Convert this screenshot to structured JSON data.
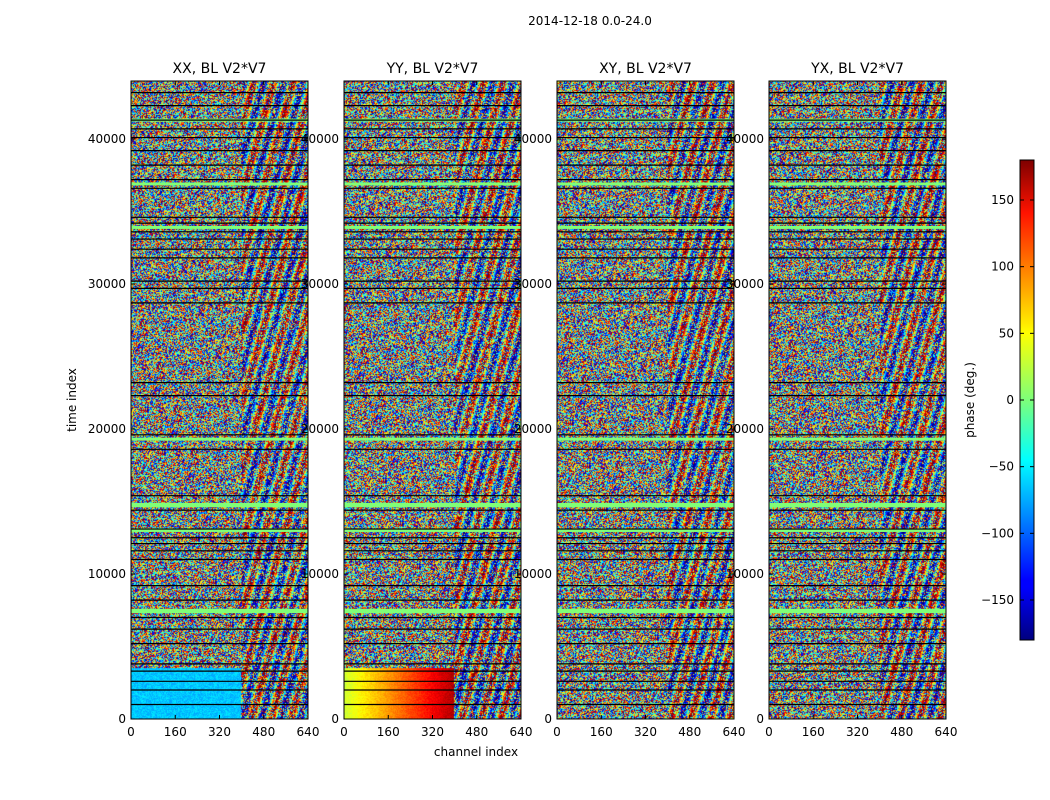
{
  "figure": {
    "suptitle": "2014-12-18 0.0-24.0",
    "xlabel": "channel index",
    "ylabel": "time index"
  },
  "chart_data": {
    "type": "heatmap",
    "colormap": "jet",
    "xlim": [
      0,
      640
    ],
    "ylim": [
      0,
      44000
    ],
    "x_ticks": [
      0,
      160,
      320,
      480,
      640
    ],
    "x_tick_labels": [
      "0",
      "160",
      "320",
      "480",
      "640"
    ],
    "y_ticks": [
      0,
      10000,
      20000,
      30000,
      40000
    ],
    "y_tick_labels": [
      "0",
      "10000",
      "20000",
      "30000",
      "40000"
    ],
    "panels": [
      {
        "title": "XX, BL V2*V7",
        "polarization": "XX"
      },
      {
        "title": "YY, BL V2*V7",
        "polarization": "YY"
      },
      {
        "title": "XY, BL V2*V7",
        "polarization": "XY"
      },
      {
        "title": "YX, BL V2*V7",
        "polarization": "YX"
      }
    ],
    "colorbar": {
      "label": "phase (deg.)",
      "vmin": -180,
      "vmax": 180,
      "ticks": [
        150,
        100,
        50,
        0,
        -50,
        -100,
        -150
      ],
      "tick_labels": [
        "150",
        "100",
        "50",
        "0",
        "−50",
        "−100",
        "−150"
      ]
    }
  }
}
